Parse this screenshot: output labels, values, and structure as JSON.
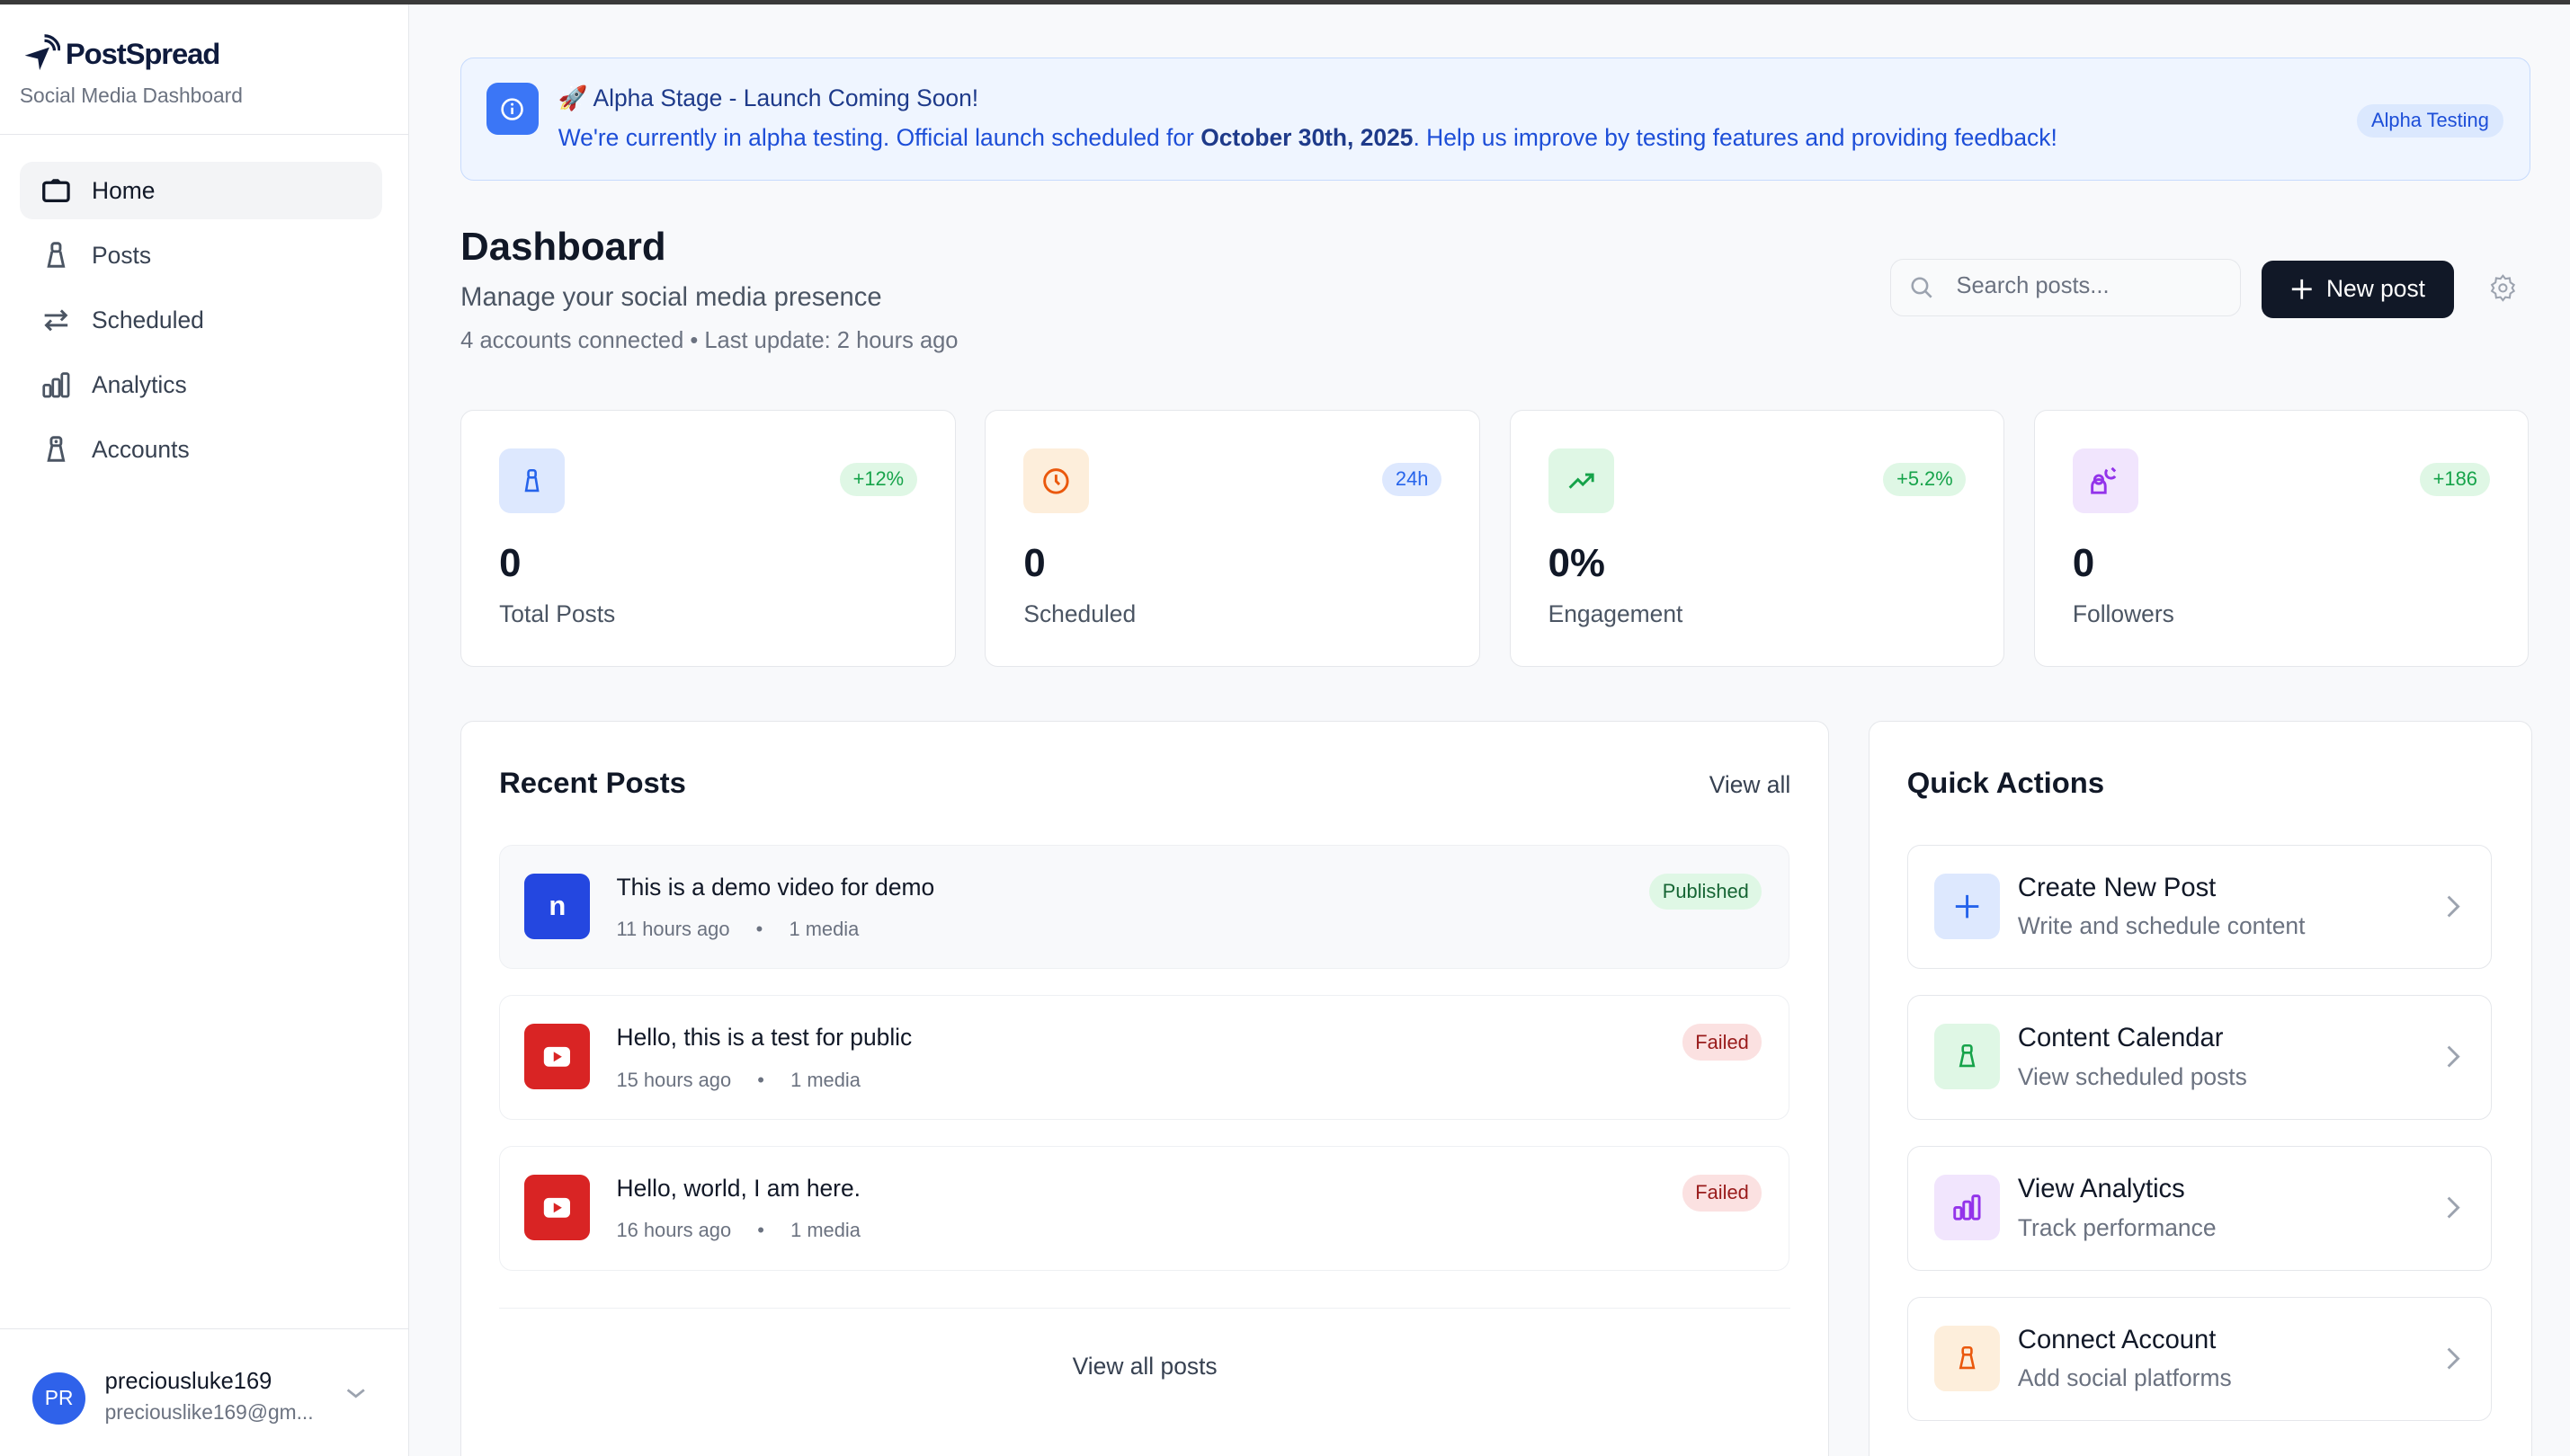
{
  "app": {
    "name": "PostSpread",
    "subtitle": "Social Media Dashboard"
  },
  "sidebar": {
    "items": [
      {
        "label": "Home",
        "icon": "folder-icon",
        "active": true
      },
      {
        "label": "Posts",
        "icon": "bag-icon"
      },
      {
        "label": "Scheduled",
        "icon": "arrows-exchange-icon"
      },
      {
        "label": "Analytics",
        "icon": "bar-chart-icon"
      },
      {
        "label": "Accounts",
        "icon": "account-icon"
      }
    ]
  },
  "user": {
    "initials": "PR",
    "name": "preciousluke169",
    "email": "preciouslike169@gm..."
  },
  "banner": {
    "title": "🚀 Alpha Stage - Launch Coming Soon!",
    "text_before": "We're currently in alpha testing. Official launch scheduled for ",
    "date": "October 30th, 2025",
    "text_after": ". Help us improve by testing features and providing feedback!",
    "badge": "Alpha Testing"
  },
  "header": {
    "title": "Dashboard",
    "subtitle": "Manage your social media presence",
    "meta": "4 accounts connected • Last update: 2 hours ago",
    "search_placeholder": "Search posts...",
    "new_post": "New post"
  },
  "stats": [
    {
      "value": "0",
      "label": "Total Posts",
      "badge": "+12%",
      "color": "#2563eb"
    },
    {
      "value": "0",
      "label": "Scheduled",
      "badge": "24h",
      "color": "#ea580c"
    },
    {
      "value": "0%",
      "label": "Engagement",
      "badge": "+5.2%",
      "color": "#16a34a"
    },
    {
      "value": "0",
      "label": "Followers",
      "badge": "+186",
      "color": "#9333ea"
    }
  ],
  "recent_posts": {
    "title": "Recent Posts",
    "view_all": "View all",
    "view_all_posts": "View all posts",
    "items": [
      {
        "title": "This is a demo video for demo",
        "time": "11 hours ago",
        "media": "1 media",
        "status": "Published",
        "platform_letter": "n"
      },
      {
        "title": "Hello, this is a test for public",
        "time": "15 hours ago",
        "media": "1 media",
        "status": "Failed",
        "platform": "youtube"
      },
      {
        "title": "Hello, world, I am here.",
        "time": "16 hours ago",
        "media": "1 media",
        "status": "Failed",
        "platform": "youtube"
      }
    ]
  },
  "quick_actions": {
    "title": "Quick Actions",
    "items": [
      {
        "title": "Create New Post",
        "subtitle": "Write and schedule content"
      },
      {
        "title": "Content Calendar",
        "subtitle": "View scheduled posts"
      },
      {
        "title": "View Analytics",
        "subtitle": "Track performance"
      },
      {
        "title": "Connect Account",
        "subtitle": "Add social platforms"
      }
    ]
  }
}
